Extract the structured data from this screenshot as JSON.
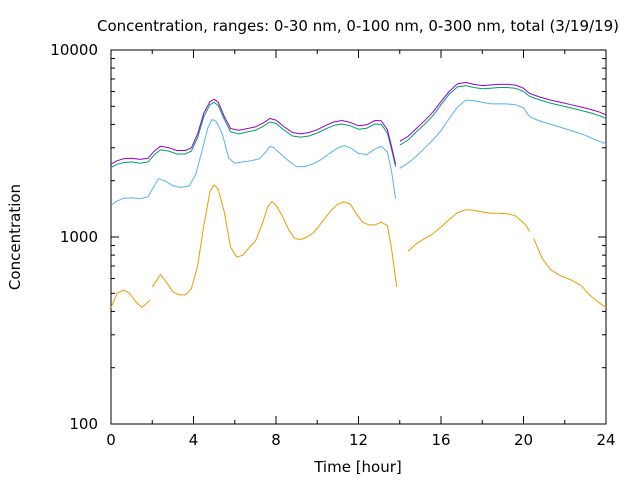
{
  "chart_data": {
    "type": "line",
    "title": "Concentration, ranges: 0-30 nm, 0-100 nm, 0-300 nm, total (3/19/19)",
    "xlabel": "Time [hour]",
    "ylabel": "Concentration",
    "xlim": [
      0,
      24
    ],
    "ylim": [
      100,
      10000
    ],
    "yscale": "log",
    "grid": false,
    "x_ticks": [
      0,
      4,
      8,
      12,
      16,
      20,
      24
    ],
    "y_ticks": [
      100,
      1000,
      10000
    ],
    "series": [
      {
        "color": "#E69F00",
        "segments": [
          [
            [
              0,
              420
            ],
            [
              0.3,
              500
            ],
            [
              0.6,
              520
            ],
            [
              0.9,
              500
            ],
            [
              1.2,
              450
            ],
            [
              1.5,
              420
            ],
            [
              1.9,
              460
            ]
          ],
          [
            [
              2.0,
              540
            ],
            [
              2.4,
              630
            ],
            [
              2.7,
              570
            ],
            [
              3.0,
              510
            ],
            [
              3.3,
              490
            ],
            [
              3.6,
              490
            ],
            [
              3.9,
              530
            ],
            [
              4.2,
              700
            ],
            [
              4.5,
              1150
            ],
            [
              4.8,
              1750
            ],
            [
              5.0,
              1900
            ],
            [
              5.2,
              1800
            ],
            [
              5.5,
              1350
            ],
            [
              5.8,
              880
            ],
            [
              6.1,
              780
            ],
            [
              6.4,
              800
            ],
            [
              6.7,
              880
            ],
            [
              7.0,
              950
            ],
            [
              7.3,
              1150
            ],
            [
              7.6,
              1450
            ],
            [
              7.8,
              1550
            ],
            [
              8.0,
              1480
            ],
            [
              8.3,
              1300
            ],
            [
              8.6,
              1100
            ],
            [
              8.9,
              980
            ],
            [
              9.2,
              970
            ],
            [
              9.5,
              1000
            ],
            [
              9.8,
              1050
            ],
            [
              10.1,
              1150
            ],
            [
              10.4,
              1270
            ],
            [
              10.7,
              1400
            ],
            [
              11.0,
              1500
            ],
            [
              11.3,
              1540
            ],
            [
              11.6,
              1500
            ],
            [
              11.9,
              1330
            ],
            [
              12.2,
              1200
            ],
            [
              12.5,
              1160
            ],
            [
              12.8,
              1160
            ],
            [
              13.1,
              1200
            ],
            [
              13.4,
              1150
            ],
            [
              13.6,
              870
            ],
            [
              13.85,
              540
            ]
          ],
          [
            [
              14.4,
              840
            ],
            [
              14.8,
              920
            ],
            [
              15.2,
              980
            ],
            [
              15.6,
              1040
            ],
            [
              16.0,
              1130
            ],
            [
              16.4,
              1240
            ],
            [
              16.8,
              1350
            ],
            [
              17.2,
              1400
            ],
            [
              17.6,
              1390
            ],
            [
              18.0,
              1360
            ],
            [
              18.4,
              1340
            ],
            [
              18.8,
              1340
            ],
            [
              19.2,
              1330
            ],
            [
              19.6,
              1300
            ],
            [
              19.9,
              1220
            ],
            [
              20.1,
              1160
            ],
            [
              20.3,
              1070
            ]
          ],
          [
            [
              20.5,
              980
            ],
            [
              20.9,
              770
            ],
            [
              21.3,
              670
            ],
            [
              21.8,
              620
            ],
            [
              22.3,
              590
            ],
            [
              22.8,
              550
            ],
            [
              23.2,
              490
            ],
            [
              23.6,
              450
            ],
            [
              24.0,
              420
            ]
          ]
        ]
      },
      {
        "color": "#56B4E9",
        "segments": [
          [
            [
              0,
              1480
            ],
            [
              0.3,
              1560
            ],
            [
              0.6,
              1610
            ],
            [
              1.0,
              1620
            ],
            [
              1.4,
              1600
            ],
            [
              1.8,
              1640
            ],
            [
              2.0,
              1800
            ],
            [
              2.3,
              2050
            ],
            [
              2.6,
              2000
            ],
            [
              3.0,
              1880
            ],
            [
              3.4,
              1840
            ],
            [
              3.8,
              1880
            ],
            [
              4.1,
              2150
            ],
            [
              4.4,
              2850
            ],
            [
              4.7,
              3850
            ],
            [
              4.9,
              4250
            ],
            [
              5.1,
              4150
            ],
            [
              5.4,
              3550
            ],
            [
              5.7,
              2650
            ],
            [
              6.0,
              2480
            ],
            [
              6.4,
              2520
            ],
            [
              6.8,
              2560
            ],
            [
              7.2,
              2620
            ],
            [
              7.5,
              2850
            ],
            [
              7.7,
              3050
            ],
            [
              7.9,
              3000
            ],
            [
              8.2,
              2800
            ],
            [
              8.6,
              2560
            ],
            [
              9.0,
              2380
            ],
            [
              9.4,
              2380
            ],
            [
              9.8,
              2460
            ],
            [
              10.2,
              2600
            ],
            [
              10.6,
              2800
            ],
            [
              11.0,
              3000
            ],
            [
              11.3,
              3080
            ],
            [
              11.6,
              3000
            ],
            [
              12.0,
              2800
            ],
            [
              12.4,
              2760
            ],
            [
              12.8,
              2950
            ],
            [
              13.1,
              3060
            ],
            [
              13.4,
              2850
            ],
            [
              13.6,
              2250
            ],
            [
              13.8,
              1600
            ]
          ],
          [
            [
              14.0,
              2330
            ],
            [
              14.4,
              2480
            ],
            [
              14.8,
              2700
            ],
            [
              15.2,
              2980
            ],
            [
              15.6,
              3300
            ],
            [
              16.0,
              3700
            ],
            [
              16.4,
              4300
            ],
            [
              16.8,
              4950
            ],
            [
              17.2,
              5400
            ],
            [
              17.6,
              5350
            ],
            [
              18.0,
              5250
            ],
            [
              18.4,
              5150
            ],
            [
              18.8,
              5150
            ],
            [
              19.2,
              5150
            ],
            [
              19.6,
              5100
            ],
            [
              20.0,
              4900
            ],
            [
              20.3,
              4400
            ],
            [
              20.6,
              4250
            ],
            [
              21.0,
              4100
            ],
            [
              21.5,
              3950
            ],
            [
              22.0,
              3800
            ],
            [
              22.5,
              3650
            ],
            [
              23.0,
              3500
            ],
            [
              23.5,
              3300
            ],
            [
              24.0,
              3150
            ]
          ]
        ]
      },
      {
        "color": "#009E73",
        "segments": [
          [
            [
              0,
              2350
            ],
            [
              0.3,
              2450
            ],
            [
              0.6,
              2500
            ],
            [
              1.0,
              2520
            ],
            [
              1.4,
              2480
            ],
            [
              1.8,
              2520
            ],
            [
              2.1,
              2750
            ],
            [
              2.4,
              2930
            ],
            [
              2.8,
              2880
            ],
            [
              3.2,
              2780
            ],
            [
              3.6,
              2780
            ],
            [
              3.9,
              2880
            ],
            [
              4.2,
              3400
            ],
            [
              4.5,
              4400
            ],
            [
              4.8,
              5100
            ],
            [
              5.0,
              5250
            ],
            [
              5.2,
              5050
            ],
            [
              5.5,
              4250
            ],
            [
              5.8,
              3650
            ],
            [
              6.2,
              3560
            ],
            [
              6.6,
              3650
            ],
            [
              7.0,
              3720
            ],
            [
              7.4,
              3920
            ],
            [
              7.7,
              4120
            ],
            [
              8.0,
              4050
            ],
            [
              8.4,
              3720
            ],
            [
              8.8,
              3470
            ],
            [
              9.2,
              3420
            ],
            [
              9.6,
              3470
            ],
            [
              10.0,
              3600
            ],
            [
              10.4,
              3780
            ],
            [
              10.8,
              3950
            ],
            [
              11.2,
              4020
            ],
            [
              11.6,
              3930
            ],
            [
              12.0,
              3770
            ],
            [
              12.4,
              3820
            ],
            [
              12.8,
              4020
            ],
            [
              13.1,
              4000
            ],
            [
              13.4,
              3600
            ],
            [
              13.6,
              2950
            ],
            [
              13.8,
              2380
            ]
          ],
          [
            [
              14.0,
              3100
            ],
            [
              14.4,
              3300
            ],
            [
              14.8,
              3650
            ],
            [
              15.2,
              4000
            ],
            [
              15.6,
              4450
            ],
            [
              16.0,
              5100
            ],
            [
              16.4,
              5800
            ],
            [
              16.8,
              6350
            ],
            [
              17.2,
              6450
            ],
            [
              17.6,
              6300
            ],
            [
              18.0,
              6200
            ],
            [
              18.4,
              6250
            ],
            [
              18.8,
              6300
            ],
            [
              19.2,
              6300
            ],
            [
              19.6,
              6250
            ],
            [
              20.0,
              6000
            ],
            [
              20.3,
              5650
            ],
            [
              20.8,
              5400
            ],
            [
              21.3,
              5200
            ],
            [
              21.8,
              5050
            ],
            [
              22.3,
              4900
            ],
            [
              22.8,
              4750
            ],
            [
              23.3,
              4600
            ],
            [
              23.7,
              4450
            ],
            [
              24.0,
              4300
            ]
          ]
        ]
      },
      {
        "color": "#9400D3",
        "segments": [
          [
            [
              0,
              2450
            ],
            [
              0.3,
              2560
            ],
            [
              0.6,
              2620
            ],
            [
              1.0,
              2640
            ],
            [
              1.4,
              2600
            ],
            [
              1.8,
              2640
            ],
            [
              2.1,
              2880
            ],
            [
              2.4,
              3060
            ],
            [
              2.8,
              3000
            ],
            [
              3.2,
              2900
            ],
            [
              3.6,
              2900
            ],
            [
              3.9,
              3000
            ],
            [
              4.2,
              3550
            ],
            [
              4.5,
              4600
            ],
            [
              4.8,
              5300
            ],
            [
              5.0,
              5450
            ],
            [
              5.2,
              5250
            ],
            [
              5.5,
              4400
            ],
            [
              5.8,
              3800
            ],
            [
              6.2,
              3720
            ],
            [
              6.6,
              3800
            ],
            [
              7.0,
              3880
            ],
            [
              7.4,
              4080
            ],
            [
              7.7,
              4300
            ],
            [
              8.0,
              4220
            ],
            [
              8.4,
              3880
            ],
            [
              8.8,
              3620
            ],
            [
              9.2,
              3560
            ],
            [
              9.6,
              3620
            ],
            [
              10.0,
              3750
            ],
            [
              10.4,
              3940
            ],
            [
              10.8,
              4120
            ],
            [
              11.2,
              4200
            ],
            [
              11.6,
              4100
            ],
            [
              12.0,
              3930
            ],
            [
              12.4,
              3980
            ],
            [
              12.8,
              4200
            ],
            [
              13.1,
              4180
            ],
            [
              13.4,
              3750
            ],
            [
              13.6,
              3050
            ],
            [
              13.8,
              2450
            ]
          ],
          [
            [
              14.0,
              3250
            ],
            [
              14.4,
              3450
            ],
            [
              14.8,
              3800
            ],
            [
              15.2,
              4180
            ],
            [
              15.6,
              4650
            ],
            [
              16.0,
              5300
            ],
            [
              16.4,
              6000
            ],
            [
              16.8,
              6600
            ],
            [
              17.2,
              6700
            ],
            [
              17.6,
              6550
            ],
            [
              18.0,
              6450
            ],
            [
              18.4,
              6500
            ],
            [
              18.8,
              6550
            ],
            [
              19.2,
              6550
            ],
            [
              19.6,
              6500
            ],
            [
              20.0,
              6250
            ],
            [
              20.3,
              5850
            ],
            [
              20.8,
              5600
            ],
            [
              21.3,
              5400
            ],
            [
              21.8,
              5250
            ],
            [
              22.3,
              5100
            ],
            [
              22.8,
              4950
            ],
            [
              23.3,
              4800
            ],
            [
              23.7,
              4650
            ],
            [
              24.0,
              4500
            ]
          ]
        ]
      }
    ]
  }
}
